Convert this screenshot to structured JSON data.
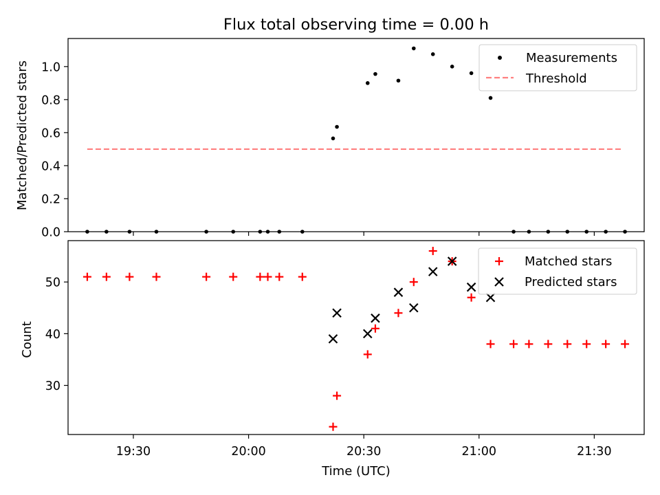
{
  "chart_data": [
    {
      "type": "scatter",
      "title": "Flux total observing time = 0.00 h",
      "ylabel": "Matched/Predicted stars",
      "xlabel": "",
      "xlim": [
        "19:13",
        "21:43"
      ],
      "ylim": [
        0,
        1.17
      ],
      "yticks": [
        "0.0",
        "0.2",
        "0.4",
        "0.6",
        "0.8",
        "1.0"
      ],
      "legend_position": "top-right",
      "series": [
        {
          "name": "Measurements",
          "marker": "dot",
          "color": "#000000",
          "points": [
            [
              "19:18",
              0.0
            ],
            [
              "19:23",
              0.0
            ],
            [
              "19:29",
              0.0
            ],
            [
              "19:36",
              0.0
            ],
            [
              "19:49",
              0.0
            ],
            [
              "19:56",
              0.0
            ],
            [
              "20:03",
              0.0
            ],
            [
              "20:05",
              0.0
            ],
            [
              "20:08",
              0.0
            ],
            [
              "20:14",
              0.0
            ],
            [
              "20:22",
              0.565
            ],
            [
              "20:23",
              0.635
            ],
            [
              "20:31",
              0.9
            ],
            [
              "20:33",
              0.955
            ],
            [
              "20:39",
              0.915
            ],
            [
              "20:43",
              1.11
            ],
            [
              "20:48",
              1.075
            ],
            [
              "20:53",
              1.0
            ],
            [
              "20:58",
              0.96
            ],
            [
              "21:03",
              0.81
            ],
            [
              "21:09",
              0.0
            ],
            [
              "21:13",
              0.0
            ],
            [
              "21:18",
              0.0
            ],
            [
              "21:23",
              0.0
            ],
            [
              "21:28",
              0.0
            ],
            [
              "21:33",
              0.0
            ],
            [
              "21:38",
              0.0
            ]
          ]
        },
        {
          "name": "Threshold",
          "type": "line",
          "style": "dashed",
          "color": "#ff7f7f",
          "points": [
            [
              "19:18",
              0.5
            ],
            [
              "21:37",
              0.5
            ]
          ]
        }
      ]
    },
    {
      "type": "scatter",
      "title": "",
      "ylabel": "Count",
      "xlabel": "Time (UTC)",
      "xlim": [
        "19:13",
        "21:43"
      ],
      "ylim": [
        20.5,
        58
      ],
      "yticks": [
        "30",
        "40",
        "50"
      ],
      "xticks": [
        "19:30",
        "20:00",
        "20:30",
        "21:00",
        "21:30"
      ],
      "legend_position": "top-right",
      "series": [
        {
          "name": "Matched stars",
          "marker": "plus",
          "color": "#ff0000",
          "points": [
            [
              "19:18",
              51
            ],
            [
              "19:23",
              51
            ],
            [
              "19:29",
              51
            ],
            [
              "19:36",
              51
            ],
            [
              "19:49",
              51
            ],
            [
              "19:56",
              51
            ],
            [
              "20:03",
              51
            ],
            [
              "20:05",
              51
            ],
            [
              "20:08",
              51
            ],
            [
              "20:14",
              51
            ],
            [
              "20:22",
              22
            ],
            [
              "20:23",
              28
            ],
            [
              "20:31",
              36
            ],
            [
              "20:33",
              41
            ],
            [
              "20:39",
              44
            ],
            [
              "20:43",
              50
            ],
            [
              "20:48",
              56
            ],
            [
              "20:53",
              54
            ],
            [
              "20:58",
              47
            ],
            [
              "21:03",
              38
            ],
            [
              "21:09",
              38
            ],
            [
              "21:13",
              38
            ],
            [
              "21:18",
              38
            ],
            [
              "21:23",
              38
            ],
            [
              "21:28",
              38
            ],
            [
              "21:33",
              38
            ],
            [
              "21:38",
              38
            ]
          ]
        },
        {
          "name": "Predicted stars",
          "marker": "x",
          "color": "#000000",
          "points": [
            [
              "20:22",
              39
            ],
            [
              "20:23",
              44
            ],
            [
              "20:31",
              40
            ],
            [
              "20:33",
              43
            ],
            [
              "20:39",
              48
            ],
            [
              "20:43",
              45
            ],
            [
              "20:48",
              52
            ],
            [
              "20:53",
              54
            ],
            [
              "20:58",
              49
            ],
            [
              "21:03",
              47
            ]
          ]
        }
      ]
    }
  ]
}
